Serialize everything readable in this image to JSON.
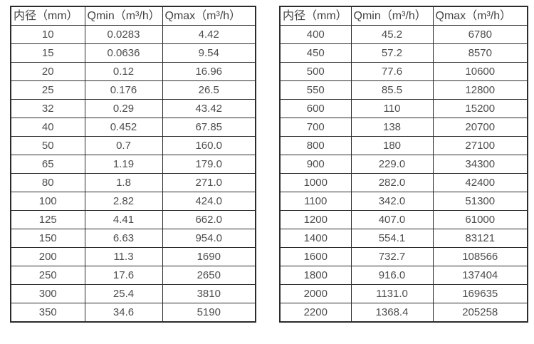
{
  "chart_data": [
    {
      "type": "table",
      "name": "flow-table-small-diameters",
      "columns": [
        "内径（mm）",
        "Qmin（m³/h）",
        "Qmax（m³/h）"
      ],
      "rows": [
        [
          "10",
          "0.0283",
          "4.42"
        ],
        [
          "15",
          "0.0636",
          "9.54"
        ],
        [
          "20",
          "0.12",
          "16.96"
        ],
        [
          "25",
          "0.176",
          "26.5"
        ],
        [
          "32",
          "0.29",
          "43.42"
        ],
        [
          "40",
          "0.452",
          "67.85"
        ],
        [
          "50",
          "0.7",
          "160.0"
        ],
        [
          "65",
          "1.19",
          "179.0"
        ],
        [
          "80",
          "1.8",
          "271.0"
        ],
        [
          "100",
          "2.82",
          "424.0"
        ],
        [
          "125",
          "4.41",
          "662.0"
        ],
        [
          "150",
          "6.63",
          "954.0"
        ],
        [
          "200",
          "11.3",
          "1690"
        ],
        [
          "250",
          "17.6",
          "2650"
        ],
        [
          "300",
          "25.4",
          "3810"
        ],
        [
          "350",
          "34.6",
          "5190"
        ]
      ]
    },
    {
      "type": "table",
      "name": "flow-table-large-diameters",
      "columns": [
        "内径（mm）",
        "Qmin（m³/h）",
        "Qmax（m³/h）"
      ],
      "rows": [
        [
          "400",
          "45.2",
          "6780"
        ],
        [
          "450",
          "57.2",
          "8570"
        ],
        [
          "500",
          "77.6",
          "10600"
        ],
        [
          "550",
          "85.5",
          "12800"
        ],
        [
          "600",
          "110",
          "15200"
        ],
        [
          "700",
          "138",
          "20700"
        ],
        [
          "800",
          "180",
          "27100"
        ],
        [
          "900",
          "229.0",
          "34300"
        ],
        [
          "1000",
          "282.0",
          "42400"
        ],
        [
          "1100",
          "342.0",
          "51300"
        ],
        [
          "1200",
          "407.0",
          "61000"
        ],
        [
          "1400",
          "554.1",
          "83121"
        ],
        [
          "1600",
          "732.7",
          "108566"
        ],
        [
          "1800",
          "916.0",
          "137404"
        ],
        [
          "2000",
          "1131.0",
          "169635"
        ],
        [
          "2200",
          "1368.4",
          "205258"
        ]
      ]
    }
  ],
  "colors": {
    "border": "#2b2b2b",
    "header_text": "#444444",
    "cell_text": "#4d4d4d",
    "background": "#ffffff"
  }
}
